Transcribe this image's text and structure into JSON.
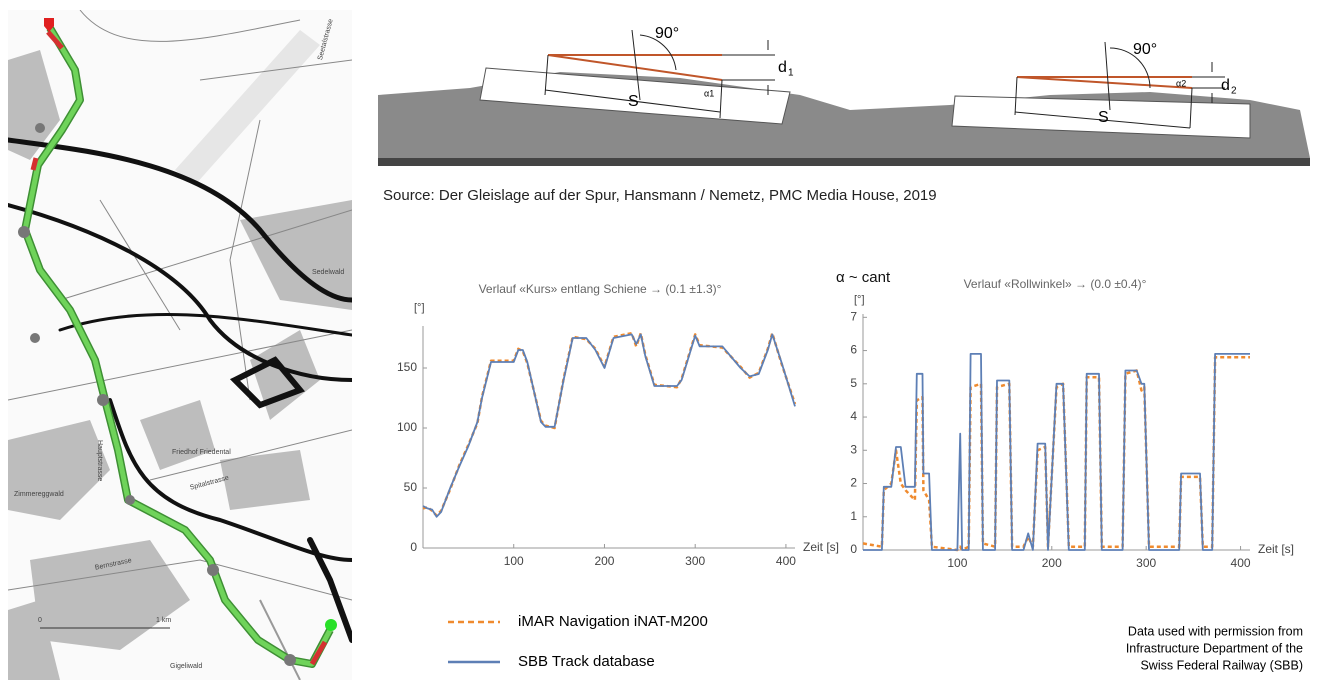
{
  "chart_data": [
    {
      "type": "line",
      "title": "Verlauf «Kurs» entlang Schiene → (0.1 ±1.3)°",
      "y_label": "[°]",
      "x_label": "Zeit [s]",
      "x": [
        0,
        5,
        10,
        15,
        20,
        30,
        40,
        50,
        60,
        65,
        75,
        100,
        105,
        110,
        115,
        130,
        135,
        145,
        155,
        165,
        180,
        190,
        200,
        210,
        230,
        235,
        240,
        245,
        255,
        280,
        285,
        300,
        305,
        330,
        350,
        360,
        370,
        380,
        385,
        395,
        410
      ],
      "series": [
        {
          "name": "iMAR Navigation iNAT-M200",
          "color": "#ef8a2e",
          "dash": true,
          "values": [
            33,
            34,
            31,
            27,
            31,
            49,
            69,
            86,
            104,
            126,
            156,
            156,
            166,
            164,
            154,
            106,
            102,
            100,
            141,
            176,
            174,
            166,
            151,
            176,
            179,
            168,
            179,
            161,
            136,
            134,
            141,
            178,
            169,
            167,
            151,
            142,
            146,
            166,
            179,
            154,
            120
          ]
        },
        {
          "name": "SBB Track database",
          "color": "#5d7fb5",
          "dash": false,
          "values": [
            35,
            33,
            32,
            26,
            30,
            50,
            68,
            85,
            105,
            125,
            155,
            155,
            165,
            165,
            155,
            105,
            101,
            101,
            140,
            175,
            175,
            165,
            150,
            175,
            178,
            170,
            178,
            160,
            135,
            135,
            140,
            177,
            168,
            168,
            150,
            143,
            145,
            165,
            178,
            155,
            118
          ]
        }
      ],
      "xlim": [
        0,
        410
      ],
      "ylim": [
        0,
        185
      ],
      "xticks": [
        100,
        200,
        300,
        400
      ],
      "yticks": [
        0,
        50,
        100,
        150
      ]
    },
    {
      "type": "line",
      "title": "Verlauf «Rollwinkel» → (0.0 ±0.4)°",
      "annotation": "α ~ cant",
      "y_label": "[°]",
      "x_label": "Zeit [s]",
      "x": [
        0,
        20,
        22,
        30,
        35,
        40,
        45,
        55,
        57,
        63,
        64,
        70,
        73,
        100,
        103,
        105,
        112,
        114,
        125,
        127,
        140,
        142,
        155,
        158,
        170,
        175,
        180,
        185,
        193,
        196,
        205,
        212,
        218,
        235,
        237,
        250,
        253,
        275,
        278,
        290,
        295,
        298,
        303,
        335,
        337,
        357,
        360,
        370,
        373,
        410
      ],
      "series": [
        {
          "name": "iMAR Navigation iNAT-M200",
          "color": "#ef8a2e",
          "dash": true,
          "values": [
            0.2,
            0.1,
            1.8,
            2.0,
            3.0,
            2.0,
            1.8,
            1.5,
            4.5,
            4.6,
            1.8,
            1.5,
            0.1,
            0,
            0.1,
            0,
            0.1,
            4.9,
            5.0,
            0.2,
            0.1,
            4.9,
            5.0,
            0.1,
            0.1,
            0.4,
            0.1,
            3.0,
            3.1,
            0.1,
            4.9,
            5.0,
            0.1,
            0.1,
            5.2,
            5.2,
            0.1,
            0.1,
            5.3,
            5.4,
            4.8,
            4.9,
            0.1,
            0.1,
            2.2,
            2.2,
            0.1,
            0.1,
            5.8,
            5.8
          ]
        },
        {
          "name": "SBB Track database",
          "color": "#5d7fb5",
          "dash": false,
          "values": [
            0,
            0,
            1.9,
            1.9,
            3.1,
            3.1,
            1.9,
            1.9,
            5.3,
            5.3,
            2.3,
            2.3,
            0,
            0,
            3.5,
            0,
            0,
            5.9,
            5.9,
            0,
            0,
            5.1,
            5.1,
            0,
            0,
            0.5,
            0,
            3.2,
            3.2,
            0,
            5.0,
            5.0,
            0,
            0,
            5.3,
            5.3,
            0,
            0,
            5.4,
            5.4,
            5.0,
            5.0,
            0,
            0,
            2.3,
            2.3,
            0,
            0,
            5.9,
            5.9
          ]
        }
      ],
      "xlim": [
        0,
        410
      ],
      "ylim": [
        0,
        7.1
      ],
      "xticks": [
        100,
        200,
        300,
        400
      ],
      "yticks": [
        0,
        1,
        2,
        3,
        4,
        5,
        6,
        7
      ]
    }
  ],
  "diagram": {
    "left": {
      "angle": "90°",
      "alpha": "α1",
      "d": "d",
      "d_sub": "1",
      "s": "S"
    },
    "right": {
      "angle": "90°",
      "alpha": "α2",
      "d": "d",
      "d_sub": "2",
      "s": "S"
    },
    "source": "Source: Der Gleislage auf der Spur, Hansmann / Nemetz, PMC Media House, 2019"
  },
  "map": {
    "labels": [
      "Seetalstrasse",
      "Sedelwald",
      "Hauptstrasse",
      "Friedhof Friedental",
      "Spitalstrasse",
      "Zimmereggwald",
      "Bernstrasse",
      "Gigeliwald"
    ],
    "scale": [
      "0",
      "1 km"
    ]
  },
  "credit": [
    "Data used with permission from",
    "Infrastructure Department of the",
    "Swiss Federal Railway (SBB)"
  ]
}
